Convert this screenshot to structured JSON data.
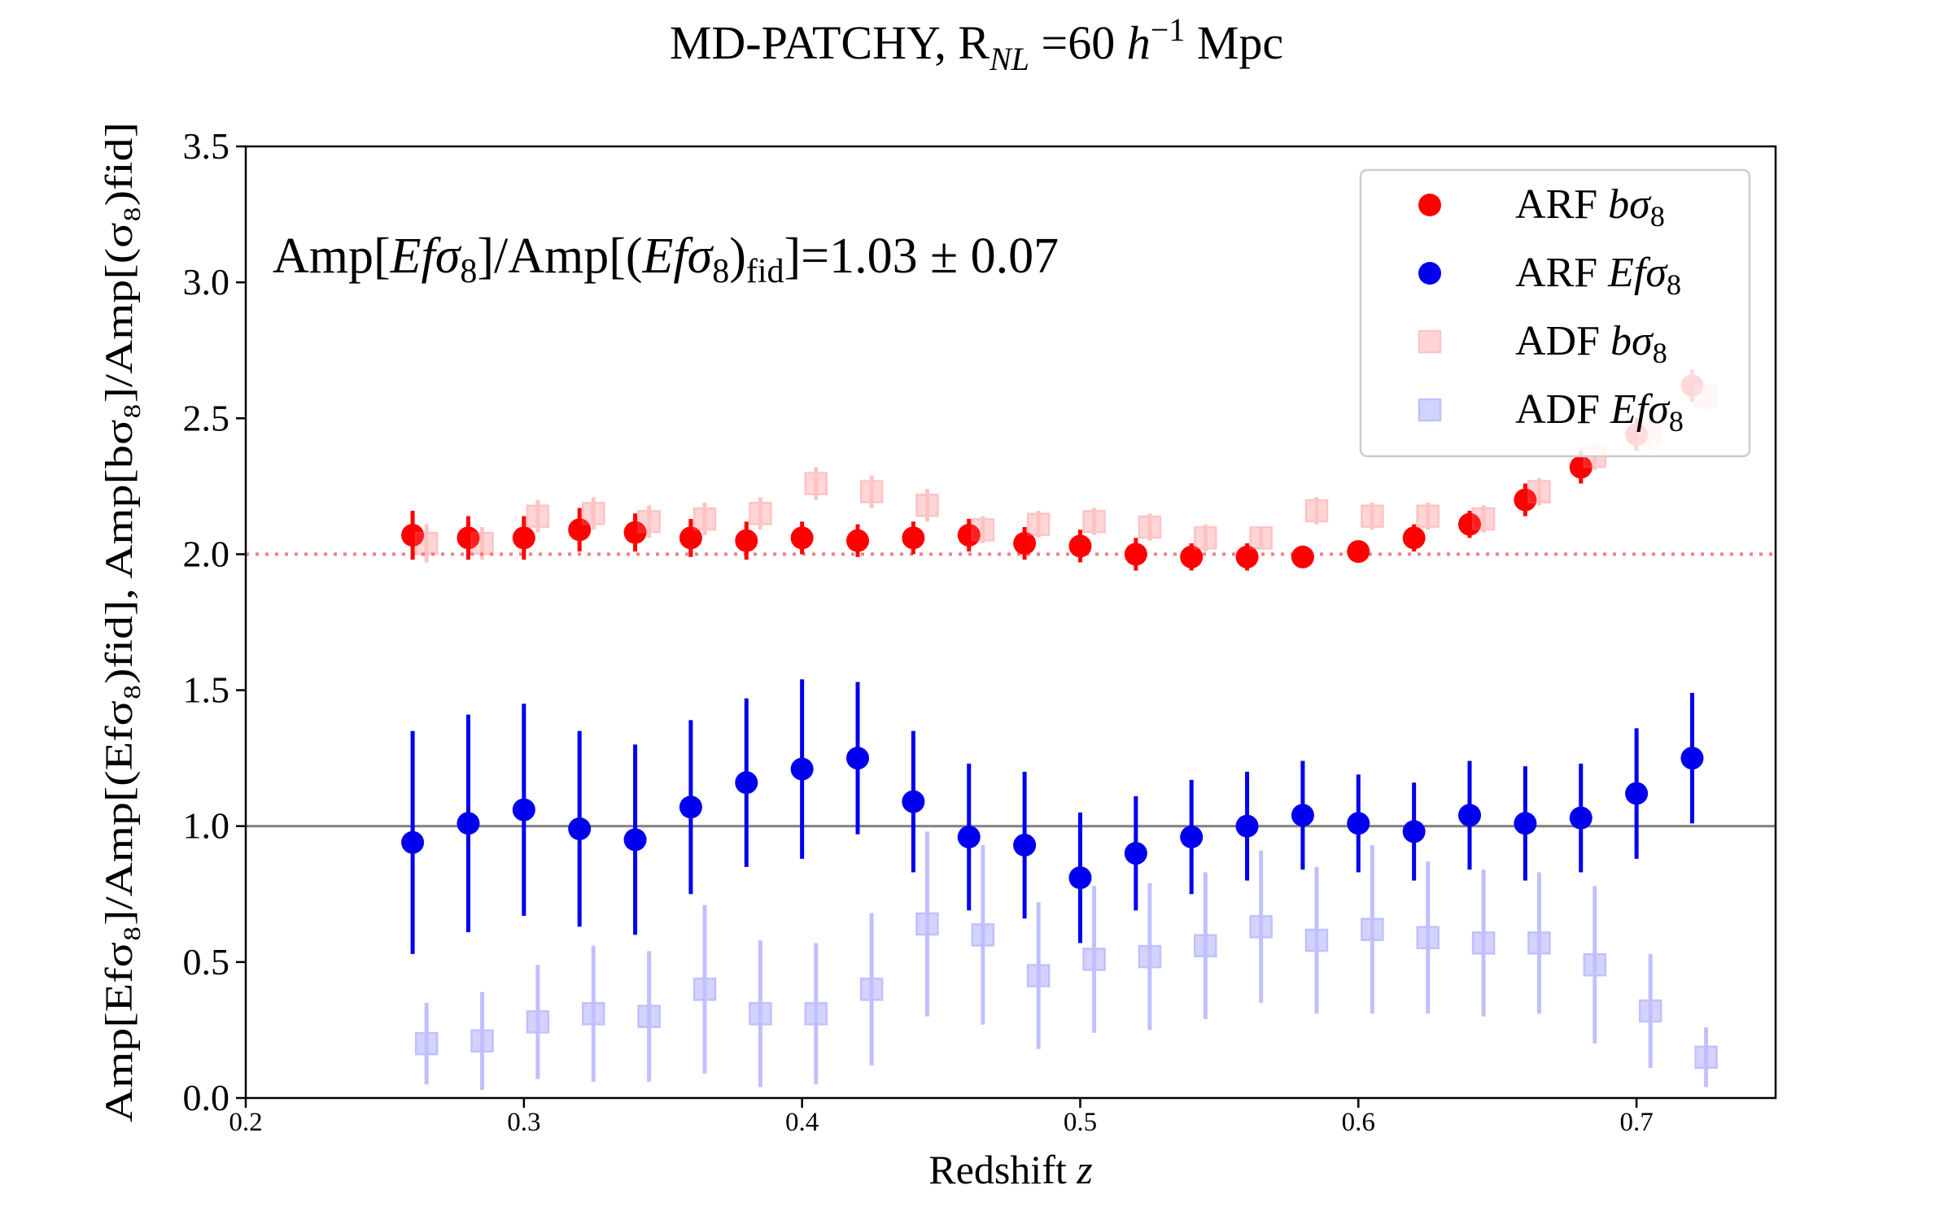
{
  "chart_data": {
    "type": "scatter",
    "title": {
      "prefix": "MD-PATCHY, R",
      "sub": "NL",
      "middle": " =60 ",
      "h": "h",
      "sup": "−1",
      "suffix": " Mpc"
    },
    "xlabel": {
      "text": "Redshift ",
      "italic": "z"
    },
    "ylabel": "Amp[Efσ₈]/Amp[(Efσ₈)fid], Amp[bσ₈]/Amp[(σ₈)fid]",
    "xlim": [
      0.2,
      0.75
    ],
    "ylim": [
      0.0,
      3.5
    ],
    "xticks": [
      0.2,
      0.3,
      0.4,
      0.5,
      0.6,
      0.7
    ],
    "xtick_labels": [
      "0.2",
      "0.3",
      "0.4",
      "0.5",
      "0.6",
      "0.7"
    ],
    "yticks": [
      0.0,
      0.5,
      1.0,
      1.5,
      2.0,
      2.5,
      3.0,
      3.5
    ],
    "ytick_labels": [
      "0.0",
      "0.5",
      "1.0",
      "1.5",
      "2.0",
      "2.5",
      "3.0",
      "3.5"
    ],
    "grid": false,
    "legend_position": "top-right",
    "reference_lines": [
      {
        "y": 2.0,
        "style": "dotted",
        "color": "#f08080"
      },
      {
        "y": 1.0,
        "style": "solid",
        "color": "#808080"
      }
    ],
    "annotation": {
      "p1": "Amp[",
      "i1": "Efσ",
      "s1": "8",
      "p2": "]/Amp[(",
      "i2": "Efσ",
      "s2": "8",
      "p3": ")",
      "s3": "fid",
      "p4": "]=1.03 ± 0.07"
    },
    "series": [
      {
        "name": "ARF bσ8",
        "legend": {
          "plain": "ARF ",
          "italic": "bσ",
          "sub": "8"
        },
        "marker": "circle",
        "color": "#ff0000",
        "alpha": 1.0,
        "x": [
          0.26,
          0.28,
          0.3,
          0.32,
          0.34,
          0.36,
          0.38,
          0.4,
          0.42,
          0.44,
          0.46,
          0.48,
          0.5,
          0.52,
          0.54,
          0.56,
          0.58,
          0.6,
          0.62,
          0.64,
          0.66,
          0.68,
          0.7,
          0.72
        ],
        "y": [
          2.07,
          2.06,
          2.06,
          2.09,
          2.08,
          2.06,
          2.05,
          2.06,
          2.05,
          2.06,
          2.07,
          2.04,
          2.03,
          2.0,
          1.99,
          1.99,
          1.99,
          2.01,
          2.06,
          2.11,
          2.2,
          2.32,
          2.44,
          2.62
        ],
        "err": [
          0.09,
          0.08,
          0.08,
          0.08,
          0.07,
          0.07,
          0.07,
          0.06,
          0.06,
          0.06,
          0.06,
          0.06,
          0.06,
          0.06,
          0.05,
          0.05,
          0.04,
          0.04,
          0.05,
          0.05,
          0.06,
          0.06,
          0.06,
          0.06
        ]
      },
      {
        "name": "ARF Efσ8",
        "legend": {
          "plain": "ARF ",
          "italic": "Efσ",
          "sub": "8"
        },
        "marker": "circle",
        "color": "#0000ee",
        "alpha": 1.0,
        "x": [
          0.26,
          0.28,
          0.3,
          0.32,
          0.34,
          0.36,
          0.38,
          0.4,
          0.42,
          0.44,
          0.46,
          0.48,
          0.5,
          0.52,
          0.54,
          0.56,
          0.58,
          0.6,
          0.62,
          0.64,
          0.66,
          0.68,
          0.7,
          0.72
        ],
        "y": [
          0.94,
          1.01,
          1.06,
          0.99,
          0.95,
          1.07,
          1.16,
          1.21,
          1.25,
          1.09,
          0.96,
          0.93,
          0.81,
          0.9,
          0.96,
          1.0,
          1.04,
          1.01,
          0.98,
          1.04,
          1.01,
          1.03,
          1.12,
          1.25
        ],
        "err": [
          0.41,
          0.4,
          0.39,
          0.36,
          0.35,
          0.32,
          0.31,
          0.33,
          0.28,
          0.26,
          0.27,
          0.27,
          0.24,
          0.21,
          0.21,
          0.2,
          0.2,
          0.18,
          0.18,
          0.2,
          0.21,
          0.2,
          0.24,
          0.24
        ]
      },
      {
        "name": "ADF bσ8",
        "legend": {
          "plain": "ADF ",
          "italic": "bσ",
          "sub": "8"
        },
        "marker": "square",
        "color": "#ff6b6b",
        "alpha": 0.4,
        "x": [
          0.265,
          0.285,
          0.305,
          0.325,
          0.345,
          0.365,
          0.385,
          0.405,
          0.425,
          0.445,
          0.465,
          0.485,
          0.505,
          0.525,
          0.545,
          0.565,
          0.585,
          0.605,
          0.625,
          0.645,
          0.665,
          0.685,
          0.705,
          0.725
        ],
        "y": [
          2.04,
          2.04,
          2.14,
          2.15,
          2.12,
          2.13,
          2.15,
          2.26,
          2.23,
          2.18,
          2.09,
          2.11,
          2.12,
          2.1,
          2.06,
          2.06,
          2.16,
          2.14,
          2.14,
          2.13,
          2.23,
          2.36,
          2.44,
          2.58
        ],
        "err": [
          0.07,
          0.06,
          0.06,
          0.06,
          0.06,
          0.06,
          0.06,
          0.06,
          0.06,
          0.06,
          0.05,
          0.05,
          0.05,
          0.05,
          0.05,
          0.04,
          0.05,
          0.05,
          0.05,
          0.05,
          0.05,
          0.05,
          0.05,
          0.05
        ]
      },
      {
        "name": "ADF Efσ8",
        "legend": {
          "plain": "ADF ",
          "italic": "Efσ",
          "sub": "8"
        },
        "marker": "square",
        "color": "#4d4dff",
        "alpha": 0.35,
        "x": [
          0.265,
          0.285,
          0.305,
          0.325,
          0.345,
          0.365,
          0.385,
          0.405,
          0.425,
          0.445,
          0.465,
          0.485,
          0.505,
          0.525,
          0.545,
          0.565,
          0.585,
          0.605,
          0.625,
          0.645,
          0.665,
          0.685,
          0.705,
          0.725
        ],
        "y": [
          0.2,
          0.21,
          0.28,
          0.31,
          0.3,
          0.4,
          0.31,
          0.31,
          0.4,
          0.64,
          0.6,
          0.45,
          0.51,
          0.52,
          0.56,
          0.63,
          0.58,
          0.62,
          0.59,
          0.57,
          0.57,
          0.49,
          0.32,
          0.15
        ],
        "err": [
          0.15,
          0.18,
          0.21,
          0.25,
          0.24,
          0.31,
          0.27,
          0.26,
          0.28,
          0.34,
          0.33,
          0.27,
          0.27,
          0.27,
          0.27,
          0.28,
          0.27,
          0.31,
          0.28,
          0.27,
          0.26,
          0.29,
          0.21,
          0.11
        ]
      }
    ]
  }
}
